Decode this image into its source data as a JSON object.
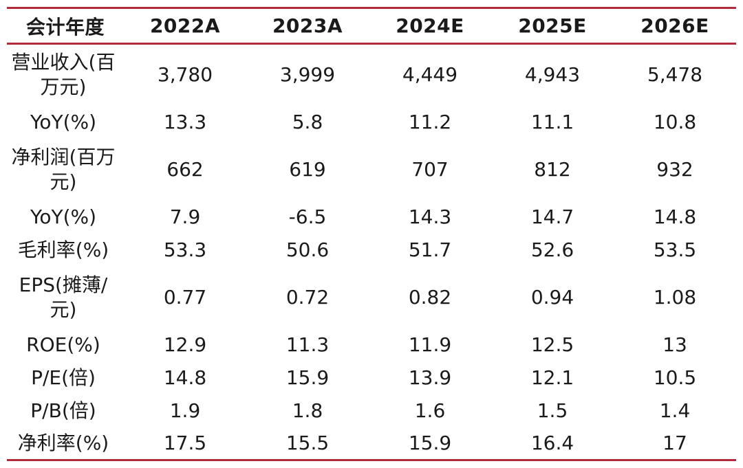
{
  "table": {
    "header": [
      "会计年度",
      "2022A",
      "2023A",
      "2024E",
      "2025E",
      "2026E"
    ],
    "rows": [
      {
        "label": "营业收入(百万元)",
        "values": [
          "3,780",
          "3,999",
          "4,449",
          "4,943",
          "5,478"
        ]
      },
      {
        "label": "YoY(%)",
        "values": [
          "13.3",
          "5.8",
          "11.2",
          "11.1",
          "10.8"
        ]
      },
      {
        "label": "净利润(百万元)",
        "values": [
          "662",
          "619",
          "707",
          "812",
          "932"
        ]
      },
      {
        "label": "YoY(%)",
        "values": [
          "7.9",
          "-6.5",
          "14.3",
          "14.7",
          "14.8"
        ]
      },
      {
        "label": "毛利率(%)",
        "values": [
          "53.3",
          "50.6",
          "51.7",
          "52.6",
          "53.5"
        ]
      },
      {
        "label": "EPS(摊薄/元)",
        "values": [
          "0.77",
          "0.72",
          "0.82",
          "0.94",
          "1.08"
        ]
      },
      {
        "label": "ROE(%)",
        "values": [
          "12.9",
          "11.3",
          "11.9",
          "12.5",
          "13"
        ]
      },
      {
        "label": "P/E(倍)",
        "values": [
          "14.8",
          "15.9",
          "13.9",
          "12.1",
          "10.5"
        ]
      },
      {
        "label": "P/B(倍)",
        "values": [
          "1.9",
          "1.8",
          "1.6",
          "1.5",
          "1.4"
        ]
      },
      {
        "label": "净利率(%)",
        "values": [
          "17.5",
          "15.5",
          "15.9",
          "16.4",
          "17"
        ]
      }
    ]
  },
  "colors": {
    "rule": "#b22a3a",
    "text": "#1a1a1a"
  }
}
